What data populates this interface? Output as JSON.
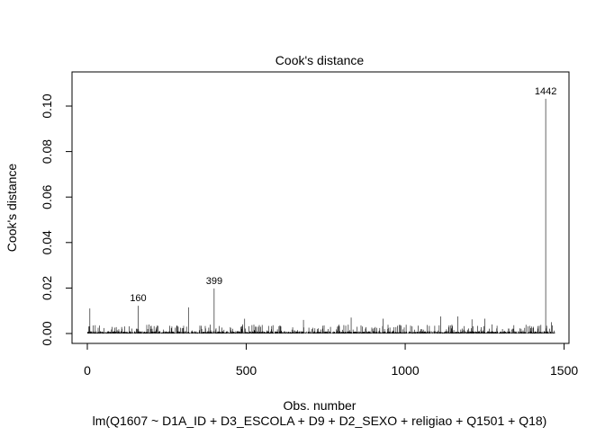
{
  "chart_data": {
    "type": "bar",
    "title": "Cook's distance",
    "xlabel": "Obs. number",
    "ylabel": "Cook's distance",
    "subtitle": "lm(Q1607 ~ D1A_ID + D3_ESCOLA + D9 + D2_SEXO + religiao + Q1501 + Q18)",
    "xlim": [
      1,
      1470
    ],
    "ylim": [
      0,
      0.103
    ],
    "x_ticks": [
      0,
      500,
      1000,
      1500
    ],
    "y_ticks": [
      0.0,
      0.02,
      0.04,
      0.06,
      0.08,
      0.1
    ],
    "x_tick_labels": [
      "0",
      "500",
      "1000",
      "1500"
    ],
    "y_tick_labels": [
      "0.00",
      "0.02",
      "0.04",
      "0.06",
      "0.08",
      "0.10"
    ],
    "n_obs": 1470,
    "highlighted": [
      {
        "x": 160,
        "y": 0.0122,
        "label": "160"
      },
      {
        "x": 399,
        "y": 0.0198,
        "label": "399"
      },
      {
        "x": 1442,
        "y": 0.1032,
        "label": "1442"
      }
    ],
    "other_spikes": [
      {
        "x": 8,
        "y": 0.011
      },
      {
        "x": 318,
        "y": 0.0115
      },
      {
        "x": 495,
        "y": 0.0065
      },
      {
        "x": 680,
        "y": 0.006
      },
      {
        "x": 830,
        "y": 0.007
      },
      {
        "x": 930,
        "y": 0.0065
      },
      {
        "x": 1112,
        "y": 0.0075
      },
      {
        "x": 1165,
        "y": 0.0075
      },
      {
        "x": 1210,
        "y": 0.0062
      },
      {
        "x": 1250,
        "y": 0.0065
      },
      {
        "x": 1460,
        "y": 0.005
      }
    ]
  }
}
